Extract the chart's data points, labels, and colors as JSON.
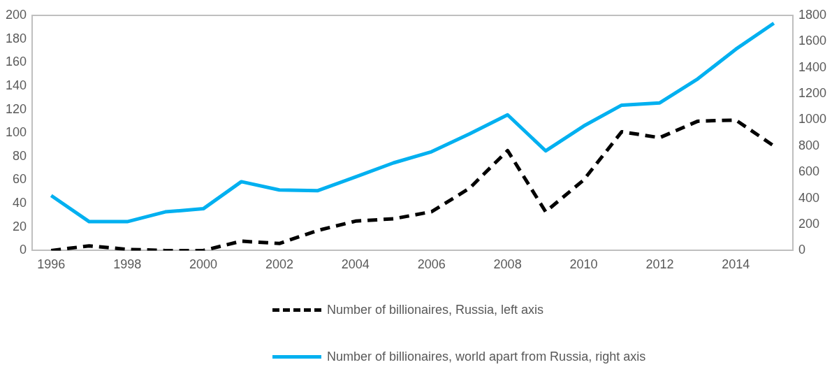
{
  "chart_data": {
    "type": "line",
    "categories": [
      "1996",
      null,
      "1998",
      null,
      "2000",
      null,
      "2002",
      null,
      "2004",
      null,
      "2006",
      null,
      "2008",
      null,
      "2010",
      null,
      "2012",
      null,
      "2014",
      null
    ],
    "series": [
      {
        "name": "Number of billionaires, Russia, left axis",
        "color": "#000000",
        "line_style": "dashed",
        "axis": "y",
        "values": [
          0,
          4,
          1,
          0,
          0,
          8,
          6,
          17,
          25,
          27,
          33,
          53,
          85,
          33,
          60,
          101,
          96,
          110,
          111,
          89
        ]
      },
      {
        "name": "Number of billionaires, world apart from Russia, right axis",
        "color": "#00b0f0",
        "line_style": "solid",
        "axis": "y2",
        "values": [
          421,
          221,
          221,
          296,
          320,
          527,
          464,
          458,
          563,
          671,
          756,
          893,
          1039,
          763,
          953,
          1113,
          1130,
          1314,
          1541,
          1740
        ]
      }
    ],
    "ylim": [
      0,
      200
    ],
    "yticks": [
      0,
      20,
      40,
      60,
      80,
      100,
      120,
      140,
      160,
      180,
      200
    ],
    "y2lim": [
      0,
      1800
    ],
    "y2ticks": [
      0,
      200,
      400,
      600,
      800,
      1000,
      1200,
      1400,
      1600,
      1800
    ],
    "grid": false,
    "legend": "bottom",
    "marker": "none"
  }
}
